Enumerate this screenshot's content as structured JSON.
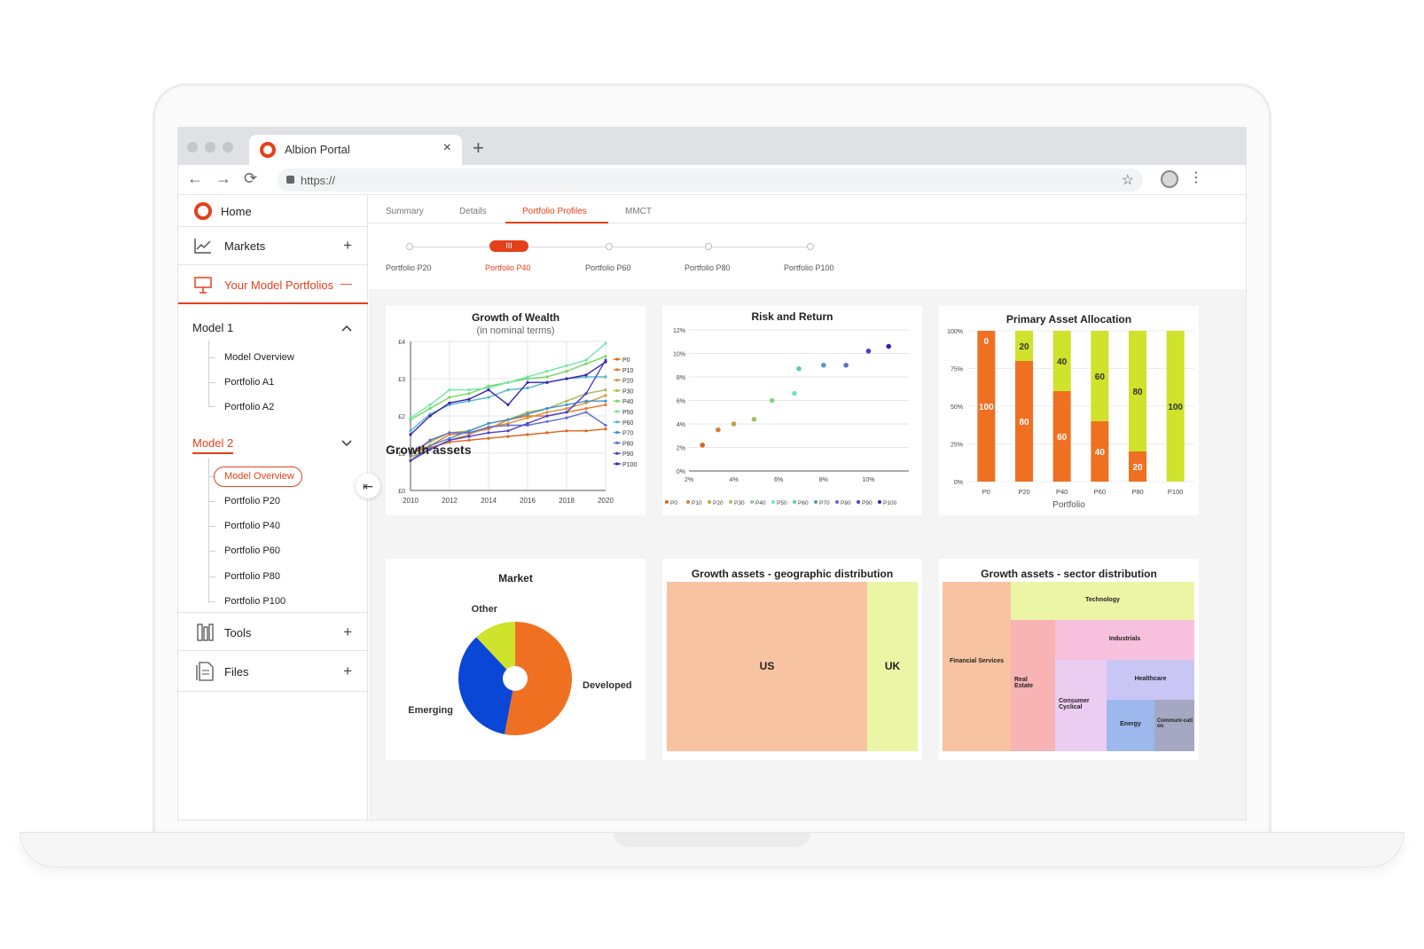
{
  "browser": {
    "tab_title": "Albion Portal",
    "tab_close": "×",
    "new_tab": "+",
    "url": "https://",
    "back": "←",
    "forward": "→",
    "reload": "⟳",
    "star": "☆",
    "menu": "⋮"
  },
  "sidebar": {
    "home": "Home",
    "markets": "Markets",
    "your_model_portfolios": "Your Model Portfolios",
    "model1": {
      "label": "Model 1",
      "items": [
        "Model Overview",
        "Portfolio A1",
        "Portfolio A2"
      ]
    },
    "model2": {
      "label": "Model 2",
      "items": [
        "Model Overview",
        "Portfolio P20",
        "Portfolio P40",
        "Portfolio P60",
        "Portfolio P80",
        "Portfolio P100"
      ]
    },
    "tools": "Tools",
    "files": "Files",
    "plus": "+",
    "minus": "—",
    "collapse_icon": "⇤"
  },
  "main": {
    "tabs": [
      "Summary",
      "Details",
      "Portfolio Profiles",
      "MMCT"
    ],
    "active_tab": "Portfolio Profiles",
    "steps": [
      "Portfolio P20",
      "Portfolio P40",
      "Portfolio P60",
      "Portfolio P80",
      "Portfolio P100"
    ],
    "active_step": "Portfolio P40",
    "step_handle": "III",
    "growth_assets_heading": "Growth assets"
  },
  "colors": {
    "accent": "#e4401b",
    "orange": "#f07022",
    "lime": "#cfe22c",
    "blue": "#0a47d6"
  },
  "chart_data": [
    {
      "type": "line",
      "title": "Growth of Wealth",
      "subtitle": "(in nominal terms)",
      "x": [
        2010,
        2011,
        2012,
        2013,
        2014,
        2015,
        2016,
        2017,
        2018,
        2019,
        2020
      ],
      "xticks": [
        "2010",
        "2012",
        "2014",
        "2016",
        "2018",
        "2020"
      ],
      "yticks": [
        "£0",
        "£1",
        "£2",
        "£3",
        "£4"
      ],
      "ylim": [
        0,
        4
      ],
      "series": [
        {
          "name": "P0",
          "color": "#e2621b",
          "values": [
            1.0,
            1.15,
            1.3,
            1.35,
            1.4,
            1.45,
            1.5,
            1.55,
            1.6,
            1.6,
            1.65
          ]
        },
        {
          "name": "P10",
          "color": "#f07022",
          "values": [
            1.0,
            1.2,
            1.5,
            1.55,
            1.65,
            1.9,
            2.0,
            2.0,
            2.1,
            2.2,
            2.3
          ]
        },
        {
          "name": "P20",
          "color": "#d89236",
          "values": [
            0.9,
            1.1,
            1.35,
            1.5,
            1.7,
            1.8,
            1.95,
            2.1,
            2.2,
            2.35,
            2.55
          ]
        },
        {
          "name": "P30",
          "color": "#a9b94a",
          "values": [
            1.0,
            1.3,
            1.55,
            1.6,
            1.8,
            1.9,
            2.1,
            2.2,
            2.4,
            2.6,
            2.7
          ]
        },
        {
          "name": "P40",
          "color": "#74d65e",
          "values": [
            1.9,
            2.2,
            2.5,
            2.6,
            2.8,
            2.9,
            3.0,
            3.05,
            3.2,
            3.4,
            3.6
          ]
        },
        {
          "name": "P50",
          "color": "#6ee8a6",
          "values": [
            1.95,
            2.3,
            2.7,
            2.7,
            2.75,
            2.9,
            3.05,
            3.2,
            3.35,
            3.5,
            3.95
          ]
        },
        {
          "name": "P60",
          "color": "#52b7c9",
          "values": [
            1.6,
            2.05,
            2.3,
            2.4,
            2.5,
            2.7,
            2.75,
            2.9,
            3.0,
            3.05,
            3.05
          ]
        },
        {
          "name": "P70",
          "color": "#3e92cf",
          "values": [
            0.8,
            1.2,
            1.4,
            1.6,
            1.8,
            1.9,
            2.05,
            2.2,
            2.3,
            2.4,
            2.4
          ]
        },
        {
          "name": "P80",
          "color": "#5d6fcf",
          "values": [
            0.95,
            1.35,
            1.55,
            1.55,
            1.7,
            1.75,
            1.75,
            1.85,
            1.95,
            2.1,
            1.75
          ]
        },
        {
          "name": "P90",
          "color": "#4a3fd0",
          "values": [
            0.8,
            1.1,
            1.35,
            1.45,
            1.55,
            1.6,
            1.8,
            2.0,
            2.1,
            2.6,
            3.5
          ]
        },
        {
          "name": "P100",
          "color": "#3521b8",
          "values": [
            1.5,
            2.0,
            2.35,
            2.45,
            2.7,
            2.3,
            2.9,
            2.9,
            3.0,
            3.1,
            3.45
          ]
        }
      ]
    },
    {
      "type": "scatter",
      "title": "Risk and Return",
      "xticks": [
        "2%",
        "4%",
        "6%",
        "8%",
        "10%"
      ],
      "yticks": [
        "0%",
        "2%",
        "4%",
        "6%",
        "8%",
        "10%",
        "12%"
      ],
      "xlim": [
        2,
        11.8
      ],
      "ylim": [
        0,
        12
      ],
      "legend": [
        "P0",
        "P10",
        "P20",
        "P30",
        "P40",
        "P50",
        "P60",
        "P70",
        "P80",
        "P90",
        "P100"
      ],
      "points": [
        {
          "name": "P0",
          "x": 2.6,
          "y": 2.2,
          "color": "#e2621b"
        },
        {
          "name": "P10",
          "x": 3.3,
          "y": 3.5,
          "color": "#d2803b"
        },
        {
          "name": "P20",
          "x": 4.0,
          "y": 4.0,
          "color": "#c79f4a"
        },
        {
          "name": "P30",
          "x": 4.9,
          "y": 4.4,
          "color": "#a3c15e"
        },
        {
          "name": "P40",
          "x": 5.7,
          "y": 6.0,
          "color": "#7fd87c"
        },
        {
          "name": "P50",
          "x": 6.7,
          "y": 6.6,
          "color": "#6de8a6"
        },
        {
          "name": "P60",
          "x": 6.9,
          "y": 8.7,
          "color": "#59cdb5"
        },
        {
          "name": "P70",
          "x": 8.0,
          "y": 9.0,
          "color": "#4d9cc3"
        },
        {
          "name": "P80",
          "x": 9.0,
          "y": 9.0,
          "color": "#5a6fcf"
        },
        {
          "name": "P90",
          "x": 10.0,
          "y": 10.2,
          "color": "#4a3fd0"
        },
        {
          "name": "P100",
          "x": 10.9,
          "y": 10.6,
          "color": "#3521b8"
        }
      ]
    },
    {
      "type": "bar",
      "title": "Primary Asset Allocation",
      "xlabel": "Portfolio",
      "categories": [
        "P0",
        "P20",
        "P40",
        "P60",
        "P80",
        "P100"
      ],
      "yticks": [
        "0%",
        "25%",
        "50%",
        "75%",
        "100%"
      ],
      "ylim": [
        0,
        100
      ],
      "series": [
        {
          "color": "#f07022",
          "values": [
            100,
            80,
            60,
            40,
            20,
            0
          ]
        },
        {
          "color": "#cfe22c",
          "values": [
            0,
            20,
            40,
            60,
            80,
            100
          ]
        }
      ]
    },
    {
      "type": "pie",
      "title": "Market",
      "slices": [
        {
          "label": "Developed",
          "value": 53,
          "color": "#f07022"
        },
        {
          "label": "Emerging",
          "value": 35,
          "color": "#0a47d6"
        },
        {
          "label": "Other",
          "value": 12,
          "color": "#cfe22c"
        }
      ]
    },
    {
      "type": "heatmap",
      "title": "Growth assets - geographic distribution",
      "cells": [
        {
          "label": "US",
          "value": 80,
          "color": "#f8c3a0"
        },
        {
          "label": "UK",
          "value": 20,
          "color": "#ecf5a6"
        }
      ]
    },
    {
      "type": "heatmap",
      "title": "Growth assets - sector distribution",
      "cells": [
        {
          "label": "Financial Services",
          "color": "#f8c3a0"
        },
        {
          "label": "Technology",
          "color": "#ecf5a6"
        },
        {
          "label": "Real Estate",
          "color": "#f8b3b5"
        },
        {
          "label": "Industrials",
          "color": "#f7c0dc"
        },
        {
          "label": "Consumer Cyclical",
          "color": "#eccdf2"
        },
        {
          "label": "Healthcare",
          "color": "#c9c6f6"
        },
        {
          "label": "Energy",
          "color": "#9cb8ec"
        },
        {
          "label": "Communi-cation",
          "color": "#a5a7c3"
        }
      ]
    }
  ]
}
